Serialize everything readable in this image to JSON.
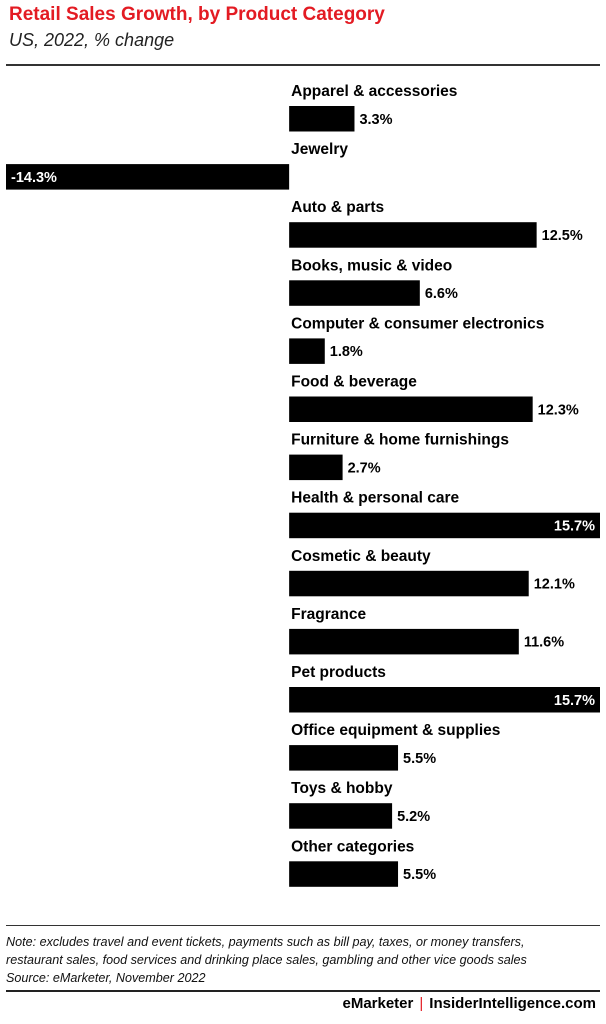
{
  "header": {
    "title": "Retail Sales Growth, by Product Category",
    "subtitle": "US, 2022, % change"
  },
  "notes": {
    "lines": [
      "Note: excludes travel and event tickets, payments such as bill pay, taxes, or money transfers,",
      "restaurant sales, food services and drinking place sales, gambling and other vice goods sales",
      "Source: eMarketer, November 2022"
    ]
  },
  "footer": {
    "brand_left": "eMarketer",
    "separator": "|",
    "brand_right": "InsiderIntelligence.com"
  },
  "colors": {
    "title": "#e31b23",
    "bar": "#000000",
    "label_inside": "#ffffff",
    "label_outside": "#000000"
  },
  "chart_data": {
    "type": "bar",
    "orientation": "horizontal",
    "categories": [
      "Apparel & accessories",
      "Jewelry",
      "Auto & parts",
      "Books, music & video",
      "Computer & consumer electronics",
      "Food & beverage",
      "Furniture & home furnishings",
      "Health & personal care",
      "Cosmetic & beauty",
      "Fragrance",
      "Pet products",
      "Office equipment & supplies",
      "Toys & hobby",
      "Other categories"
    ],
    "values": [
      3.3,
      -14.3,
      12.5,
      6.6,
      1.8,
      12.3,
      2.7,
      15.7,
      12.1,
      11.6,
      15.7,
      5.5,
      5.2,
      5.5
    ],
    "value_labels": [
      "3.3%",
      "-14.3%",
      "12.5%",
      "6.6%",
      "1.8%",
      "12.3%",
      "2.7%",
      "15.7%",
      "12.1%",
      "11.6%",
      "15.7%",
      "5.5%",
      "5.2%",
      "5.5%"
    ],
    "title": "Retail Sales Growth, by Product Category",
    "subtitle": "US, 2022, % change",
    "xlim": [
      -14.3,
      15.7
    ],
    "grid": false,
    "legend": "none"
  }
}
